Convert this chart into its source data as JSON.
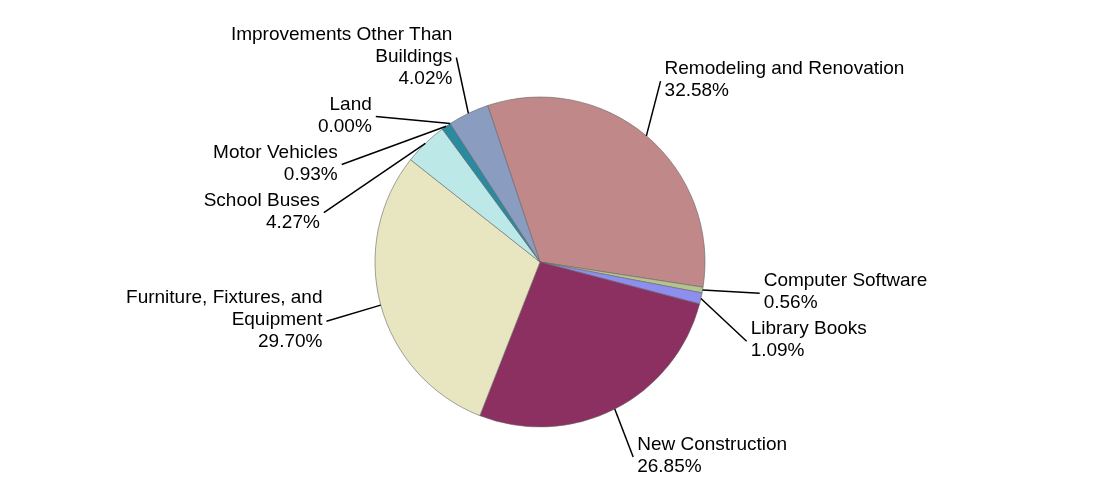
{
  "chart_data": {
    "type": "pie",
    "categories": [
      "Remodeling and Renovation",
      "Computer Software",
      "Library Books",
      "New Construction",
      "Furniture, Fixtures, and Equipment",
      "School Buses",
      "Motor Vehicles",
      "Land",
      "Improvements Other Than Buildings"
    ],
    "values": [
      32.58,
      0.56,
      1.09,
      26.85,
      29.7,
      4.27,
      0.93,
      0.0,
      4.02
    ],
    "value_labels": [
      "32.58%",
      "0.56%",
      "1.09%",
      "26.85%",
      "29.70%",
      "4.27%",
      "0.93%",
      "0.00%",
      "4.02%"
    ],
    "colors": [
      "#c08888",
      "#b4c48e",
      "#8e8ef0",
      "#8b3060",
      "#e8e6c0",
      "#bce8e8",
      "#2a8aa0",
      "#6a7a9a",
      "#8a9cc0"
    ]
  }
}
